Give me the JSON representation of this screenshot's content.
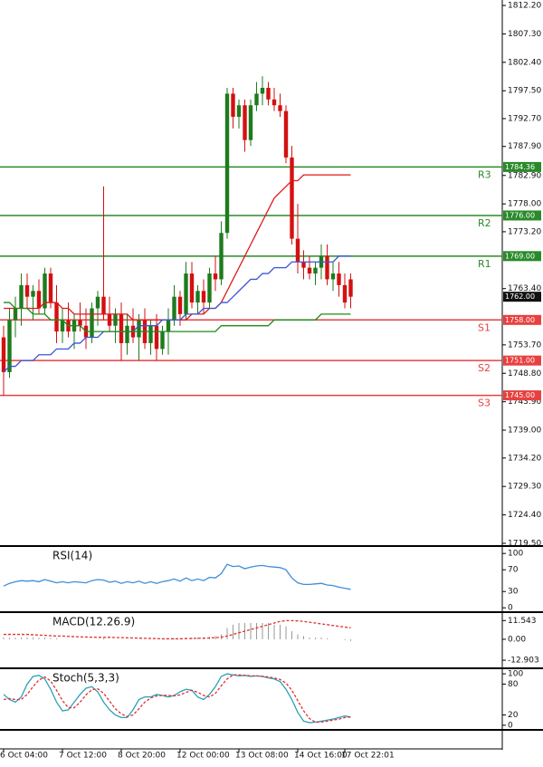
{
  "chart_data": [
    {
      "type": "candlestick",
      "categories": [
        "6 Oct 04:00",
        null,
        null,
        null,
        null,
        null,
        null,
        null,
        null,
        null,
        "7 Oct 12:00",
        null,
        null,
        null,
        null,
        null,
        null,
        null,
        null,
        null,
        "8 Oct 20:00",
        null,
        null,
        null,
        null,
        null,
        null,
        null,
        null,
        null,
        "12 Oct 00:00",
        null,
        null,
        null,
        null,
        null,
        null,
        null,
        null,
        null,
        "13 Oct 08:00",
        null,
        null,
        null,
        null,
        null,
        null,
        null,
        null,
        null,
        "14 Oct 16:00",
        null,
        null,
        null,
        null,
        null,
        null,
        null,
        "17 Oct 22:01",
        null
      ],
      "open": [
        1755,
        1749,
        1758,
        1760,
        1764,
        1762,
        1763,
        1760,
        1766,
        1761,
        1756,
        1758,
        1756,
        1758,
        1757,
        1755,
        1760,
        1762,
        1759,
        1757,
        1759,
        1754,
        1757,
        1755,
        1758,
        1754,
        1757,
        1753,
        1756,
        1758,
        1762,
        1759,
        1766,
        1761,
        1763,
        1761,
        1766,
        1765,
        1773,
        1797,
        1793,
        1795,
        1789,
        1795,
        1797,
        1798,
        1796,
        1795,
        1794,
        1786,
        1772,
        1768,
        1767,
        1766,
        1767,
        1769,
        1765,
        1766,
        1764,
        1765
      ],
      "high": [
        1757,
        1760,
        1762,
        1766,
        1766,
        1764,
        1765,
        1767,
        1767,
        1764,
        1760,
        1761,
        1759,
        1761,
        1760,
        1761,
        1763,
        1781,
        1762,
        1760,
        1761,
        1759,
        1760,
        1759,
        1760,
        1758,
        1759,
        1757,
        1760,
        1764,
        1763,
        1768,
        1768,
        1764,
        1765,
        1767,
        1769,
        1775,
        1798,
        1798,
        1796,
        1796,
        1796,
        1799,
        1800,
        1799,
        1798,
        1797,
        1795,
        1788,
        1778,
        1770,
        1769,
        1768,
        1771,
        1771,
        1768,
        1768,
        1766,
        1766
      ],
      "low": [
        1745,
        1748,
        1755,
        1757,
        1760,
        1758,
        1759,
        1759,
        1760,
        1754,
        1754,
        1755,
        1753,
        1756,
        1753,
        1754,
        1757,
        1758,
        1756,
        1754,
        1751,
        1752,
        1754,
        1751,
        1753,
        1752,
        1751,
        1752,
        1752,
        1757,
        1757,
        1758,
        1760,
        1759,
        1759,
        1760,
        1763,
        1764,
        1772,
        1791,
        1791,
        1787,
        1788,
        1794,
        1795,
        1795,
        1794,
        1793,
        1785,
        1771,
        1766,
        1765,
        1765,
        1764,
        1765,
        1764,
        1763,
        1762,
        1760,
        1760
      ],
      "close": [
        1749,
        1758,
        1760,
        1764,
        1762,
        1763,
        1760,
        1766,
        1761,
        1756,
        1758,
        1756,
        1758,
        1757,
        1755,
        1760,
        1762,
        1759,
        1757,
        1759,
        1754,
        1757,
        1755,
        1758,
        1754,
        1757,
        1753,
        1756,
        1758,
        1762,
        1759,
        1766,
        1761,
        1763,
        1761,
        1766,
        1765,
        1773,
        1797,
        1793,
        1795,
        1789,
        1795,
        1797,
        1798,
        1796,
        1795,
        1794,
        1786,
        1772,
        1768,
        1767,
        1766,
        1767,
        1769,
        1765,
        1766,
        1764,
        1761,
        1762
      ],
      "up_color": "#1e7b1e",
      "down_color": "#d41010",
      "lines": [
        {
          "color": "#e01818",
          "values": [
            1760,
            1760,
            1760,
            1760,
            1760,
            1760,
            1760,
            1761,
            1761,
            1761,
            1760,
            1760,
            1759,
            1759,
            1759,
            1759,
            1759,
            1759,
            1759,
            1759,
            1759,
            1759,
            1758,
            1758,
            1758,
            1758,
            1758,
            1758,
            1758,
            1758,
            1758,
            1758,
            1759,
            1759,
            1759,
            1760,
            1760,
            1761,
            1763,
            1765,
            1767,
            1769,
            1771,
            1773,
            1775,
            1777,
            1779,
            1780,
            1781,
            1782,
            1782,
            1783,
            1783,
            1783,
            1783,
            1783,
            1783,
            1783,
            1783,
            1783
          ]
        },
        {
          "color": "#3a55d8",
          "values": [
            1749,
            1750,
            1750,
            1751,
            1751,
            1751,
            1752,
            1752,
            1752,
            1753,
            1753,
            1753,
            1754,
            1754,
            1755,
            1755,
            1755,
            1756,
            1756,
            1756,
            1756,
            1756,
            1756,
            1757,
            1757,
            1757,
            1757,
            1758,
            1758,
            1758,
            1758,
            1759,
            1759,
            1759,
            1760,
            1760,
            1760,
            1761,
            1761,
            1762,
            1763,
            1764,
            1765,
            1765,
            1766,
            1766,
            1767,
            1767,
            1767,
            1768,
            1768,
            1768,
            1768,
            1768,
            1768,
            1768,
            1768,
            1769,
            1769,
            1769
          ]
        },
        {
          "color": "#1e8a1e",
          "values": [
            1761,
            1761,
            1760,
            1760,
            1760,
            1759,
            1759,
            1759,
            1758,
            1758,
            1758,
            1757,
            1757,
            1757,
            1756,
            1756,
            1756,
            1756,
            1756,
            1756,
            1756,
            1756,
            1756,
            1756,
            1756,
            1756,
            1756,
            1756,
            1756,
            1756,
            1756,
            1756,
            1756,
            1756,
            1756,
            1756,
            1756,
            1757,
            1757,
            1757,
            1757,
            1757,
            1757,
            1757,
            1757,
            1757,
            1758,
            1758,
            1758,
            1758,
            1758,
            1758,
            1758,
            1758,
            1759,
            1759,
            1759,
            1759,
            1759,
            1759
          ]
        }
      ],
      "levels": [
        {
          "name": "R3",
          "value": 1784.36,
          "label": "1784.36",
          "color": "#2a8a2a"
        },
        {
          "name": "R2",
          "value": 1776,
          "label": "1776.00",
          "color": "#2a8a2a"
        },
        {
          "name": "R1",
          "value": 1769,
          "label": "1769.00",
          "color": "#2a8a2a"
        },
        {
          "name": "S1",
          "value": 1758,
          "label": "1758.00",
          "color": "#e84040"
        },
        {
          "name": "S2",
          "value": 1751,
          "label": "1751.00",
          "color": "#e84040"
        },
        {
          "name": "S3",
          "value": 1745,
          "label": "1745.00",
          "color": "#e84040"
        }
      ],
      "current_price": {
        "value": 1762,
        "label": "1762.00"
      },
      "ylim": [
        1719.03,
        1813.14
      ],
      "yticks": [
        {
          "value": 1812.2,
          "label": "1812.20"
        },
        {
          "value": 1807.3,
          "label": "1807.30"
        },
        {
          "value": 1802.4,
          "label": "1802.40"
        },
        {
          "value": 1797.5,
          "label": "1797.50"
        },
        {
          "value": 1792.7,
          "label": "1792.70"
        },
        {
          "value": 1787.9,
          "label": "1787.90"
        },
        {
          "value": 1782.9,
          "label": "1782.90"
        },
        {
          "value": 1778,
          "label": "1778.00"
        },
        {
          "value": 1773.2,
          "label": "1773.20"
        },
        {
          "value": 1763.4,
          "label": "1763.40"
        },
        {
          "value": 1753.7,
          "label": "1753.70"
        },
        {
          "value": 1748.8,
          "label": "1748.80"
        },
        {
          "value": 1743.9,
          "label": "1743.90"
        },
        {
          "value": 1739,
          "label": "1739.00"
        },
        {
          "value": 1734.2,
          "label": "1734.20"
        },
        {
          "value": 1729.3,
          "label": "1729.30"
        },
        {
          "value": 1724.4,
          "label": "1724.40"
        },
        {
          "value": 1719.5,
          "label": "1719.50"
        }
      ]
    },
    {
      "type": "line",
      "title": "RSI(14)",
      "ylim": [
        -8,
        112
      ],
      "yticks": [
        100,
        70,
        30,
        0
      ],
      "series": [
        {
          "type": "line",
          "color": "#3c8fd8",
          "values": [
            40,
            45,
            48,
            50,
            49,
            50,
            48,
            52,
            49,
            46,
            48,
            46,
            48,
            47,
            46,
            50,
            52,
            51,
            47,
            49,
            45,
            48,
            46,
            49,
            45,
            48,
            45,
            48,
            50,
            53,
            49,
            55,
            50,
            53,
            50,
            56,
            55,
            63,
            80,
            76,
            77,
            72,
            75,
            77,
            78,
            76,
            75,
            74,
            70,
            55,
            46,
            43,
            43,
            44,
            45,
            42,
            41,
            38,
            36,
            34
          ]
        }
      ]
    },
    {
      "type": "line",
      "title": "MACD(12.26.9)",
      "ylim": [
        -17.89,
        16.16
      ],
      "yticks": [
        11.543,
        {
          "value": 0,
          "label": "0.00"
        },
        -12.903
      ],
      "series": [
        {
          "type": "bar",
          "color": "#9a9a9a",
          "values": [
            1,
            1,
            1,
            1,
            1,
            1,
            1,
            1,
            0.5,
            0.5,
            0,
            0,
            0,
            0,
            0,
            0,
            0,
            0.5,
            0,
            0,
            0,
            0,
            0,
            0,
            0,
            0,
            0,
            0,
            0,
            0.5,
            0.5,
            1,
            1,
            1,
            1,
            1.5,
            2,
            3,
            7,
            9,
            10,
            10,
            10,
            10,
            10,
            10,
            9,
            9,
            8,
            5,
            3,
            2,
            1,
            1,
            1,
            0.5,
            0,
            0,
            -0.5,
            -1
          ]
        },
        {
          "type": "line",
          "color": "#e03030",
          "dash": true,
          "values": [
            3,
            3,
            3,
            3,
            3,
            2.8,
            2.6,
            2.4,
            2.2,
            2,
            2,
            1.8,
            1.6,
            1.5,
            1.4,
            1.3,
            1.2,
            1.2,
            1.2,
            1.1,
            1,
            0.9,
            0.8,
            0.7,
            0.6,
            0.5,
            0.4,
            0.3,
            0.3,
            0.3,
            0.3,
            0.4,
            0.5,
            0.6,
            0.7,
            0.8,
            1,
            1.3,
            2,
            3,
            4,
            5,
            6,
            7,
            8,
            9,
            10,
            11,
            11.5,
            11.5,
            11.3,
            11,
            10.5,
            10,
            9.5,
            9,
            8.5,
            8,
            7.5,
            7
          ]
        }
      ]
    },
    {
      "type": "line",
      "title": "Stoch(5,3,3)",
      "ylim": [
        -9,
        109
      ],
      "yticks": [
        100,
        80,
        20,
        0
      ],
      "series": [
        {
          "type": "line",
          "color": "#2aa0b8",
          "values": [
            60,
            50,
            45,
            55,
            80,
            95,
            97,
            90,
            70,
            45,
            28,
            30,
            45,
            60,
            72,
            75,
            65,
            45,
            30,
            20,
            15,
            15,
            30,
            50,
            55,
            55,
            60,
            58,
            55,
            58,
            65,
            70,
            68,
            55,
            50,
            60,
            75,
            95,
            100,
            98,
            96,
            97,
            95,
            96,
            95,
            92,
            90,
            85,
            70,
            50,
            25,
            8,
            5,
            6,
            8,
            10,
            12,
            15,
            18,
            16
          ]
        },
        {
          "type": "line",
          "color": "#e03030",
          "dash": true,
          "values": [
            50,
            52,
            50,
            50,
            60,
            75,
            88,
            94,
            86,
            68,
            48,
            34,
            34,
            45,
            59,
            69,
            71,
            62,
            47,
            32,
            22,
            17,
            20,
            32,
            45,
            53,
            57,
            58,
            58,
            57,
            59,
            64,
            68,
            64,
            58,
            55,
            62,
            77,
            90,
            98,
            98,
            97,
            96,
            96,
            95,
            94,
            92,
            89,
            82,
            68,
            48,
            28,
            13,
            6,
            6,
            8,
            10,
            12,
            15,
            16
          ]
        }
      ]
    }
  ]
}
